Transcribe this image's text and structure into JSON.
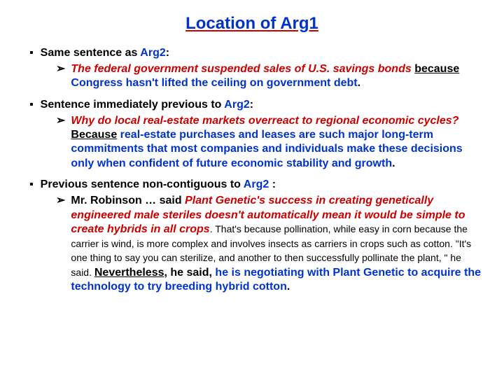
{
  "title": "Location of Arg1",
  "colors": {
    "arg1": "#cc0000",
    "arg2": "#0033cc",
    "title_underline": "#cc0000",
    "background": "#ffffff"
  },
  "fonts": {
    "title_size": 24,
    "body_size": 16,
    "small_size": 14
  },
  "b1": {
    "heading_pre": "Same sentence as ",
    "heading_arg2": "Arg2",
    "heading_post": ":",
    "sub_arg1": "The federal government suspended sales of U.S. savings bonds",
    "sub_conn": "because",
    "sub_arg2": " Congress hasn't lifted the ceiling on government debt",
    "sub_period": "."
  },
  "b2": {
    "heading_pre": "Sentence immediately previous to ",
    "heading_arg2": "Arg2",
    "heading_post": ":",
    "sub_arg1": "Why do local real-estate markets overreact to regional economic cycles?",
    "sub_conn": "Because",
    "sub_arg2": " real-estate purchases and leases are such major long-term commitments that most companies and individuals make these decisions only when confident of future economic stability and growth",
    "sub_period": "."
  },
  "b3": {
    "heading_pre": "Previous sentence non-contiguous to ",
    "heading_arg2": "Arg2 ",
    "heading_post": ":",
    "sub_lead": "Mr. Robinson … said ",
    "sub_arg1": "Plant Genetic's success in creating genetically engineered male steriles doesn't automatically mean it would be simple to create hybrids in all crops",
    "sub_plain": ". That's because pollination, while easy in corn because the carrier is wind, is more complex and involves insects as carriers in crops such as cotton. \"It's one thing to say you can sterilize, and another to then successfully pollinate the plant, \" he said. ",
    "sub_conn": "Nevertheless",
    "sub_mid": ", he said, ",
    "sub_arg2": "he is negotiating with Plant Genetic to acquire the technology to try breeding hybrid cotton",
    "sub_period": "."
  }
}
